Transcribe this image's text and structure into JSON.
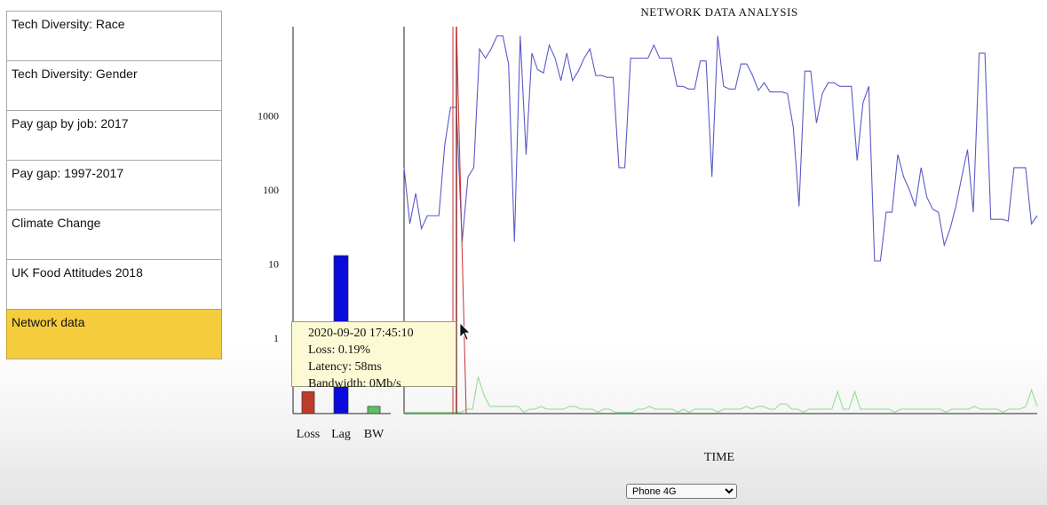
{
  "menu": {
    "items": [
      {
        "label": "Tech Diversity: Race",
        "active": false
      },
      {
        "label": "Tech Diversity: Gender",
        "active": false
      },
      {
        "label": "Pay gap by job: 2017",
        "active": false
      },
      {
        "label": "Pay gap: 1997-2017",
        "active": false
      },
      {
        "label": "Climate Change",
        "active": false
      },
      {
        "label": "UK Food Attitudes 2018",
        "active": false
      },
      {
        "label": "Network data",
        "active": true
      }
    ]
  },
  "tooltip": {
    "timestamp": "2020-09-20 17:45:10",
    "loss": "Loss: 0.19%",
    "latency": "Latency: 58ms",
    "bandwidth": "Bandwidth: 0Mb/s"
  },
  "device_select": {
    "options": [
      "Phone 4G"
    ],
    "selected": "Phone 4G"
  },
  "chart_data": {
    "type": "line",
    "title": "NETWORK DATA ANALYSIS",
    "xlabel": "TIME",
    "y_scale": "log",
    "ylim": [
      0.1,
      30000
    ],
    "y_ticks": [
      1,
      10,
      100,
      1000
    ],
    "grid": false,
    "colors": {
      "latency": "#5a5ac8",
      "bandwidth": "#8fe08f",
      "cursor": "#c83232",
      "lag_bar": "#0b0bdc",
      "loss_bar": "#c03a2a",
      "bw_bar": "#5ec05e"
    },
    "bar_chart": {
      "categories": [
        "Loss",
        "Lag",
        "BW"
      ],
      "values": [
        0.19,
        13,
        0.12
      ]
    },
    "series": [
      {
        "values": [
          200,
          35,
          90,
          30,
          45,
          45,
          45,
          400,
          1300,
          1300,
          20,
          150,
          200,
          8000,
          6000,
          8000,
          12000,
          12000,
          5000,
          20,
          12000,
          300,
          7000,
          4200,
          3800,
          9000,
          6000,
          3000,
          7000,
          3000,
          4000,
          6000,
          8000,
          3500,
          3500,
          3300,
          3300,
          200,
          200,
          6000,
          6000,
          6000,
          6000,
          9000,
          6000,
          6000,
          6000,
          2500,
          2500,
          2300,
          2300,
          5500,
          5500,
          150,
          12000,
          2500,
          2300,
          2300,
          5000,
          5000,
          3500,
          2200,
          2800,
          2100,
          2100,
          2100,
          2000,
          700,
          60,
          4000,
          4000,
          800,
          2000,
          2800,
          2800,
          2500,
          2500,
          2500,
          250,
          1500,
          2500,
          11,
          11,
          50,
          50,
          300,
          150,
          100,
          60,
          200,
          80,
          55,
          50,
          18,
          30,
          60,
          150,
          350,
          50,
          7000,
          7000,
          40,
          40,
          40,
          38,
          200,
          200,
          200,
          35,
          45
        ]
      },
      {
        "values": [
          0.1,
          0.1,
          0.1,
          0.1,
          0.1,
          0.1,
          0.1,
          0.1,
          0.1,
          0.1,
          0.1,
          0.11,
          0.11,
          0.3,
          0.17,
          0.12,
          0.12,
          0.12,
          0.12,
          0.12,
          0.12,
          0.1,
          0.11,
          0.11,
          0.12,
          0.11,
          0.11,
          0.11,
          0.11,
          0.12,
          0.12,
          0.11,
          0.11,
          0.11,
          0.1,
          0.11,
          0.11,
          0.1,
          0.1,
          0.1,
          0.1,
          0.11,
          0.11,
          0.12,
          0.11,
          0.11,
          0.11,
          0.11,
          0.1,
          0.11,
          0.1,
          0.11,
          0.11,
          0.11,
          0.11,
          0.1,
          0.11,
          0.11,
          0.11,
          0.11,
          0.12,
          0.11,
          0.12,
          0.12,
          0.11,
          0.11,
          0.13,
          0.13,
          0.11,
          0.11,
          0.1,
          0.11,
          0.11,
          0.11,
          0.11,
          0.11,
          0.19,
          0.11,
          0.11,
          0.19,
          0.11,
          0.11,
          0.11,
          0.11,
          0.11,
          0.11,
          0.1,
          0.11,
          0.11,
          0.11,
          0.11,
          0.11,
          0.11,
          0.11,
          0.11,
          0.1,
          0.11,
          0.11,
          0.11,
          0.11,
          0.12,
          0.11,
          0.11,
          0.11,
          0.11,
          0.1,
          0.11,
          0.11,
          0.11,
          0.12,
          0.2,
          0.12
        ]
      }
    ]
  }
}
